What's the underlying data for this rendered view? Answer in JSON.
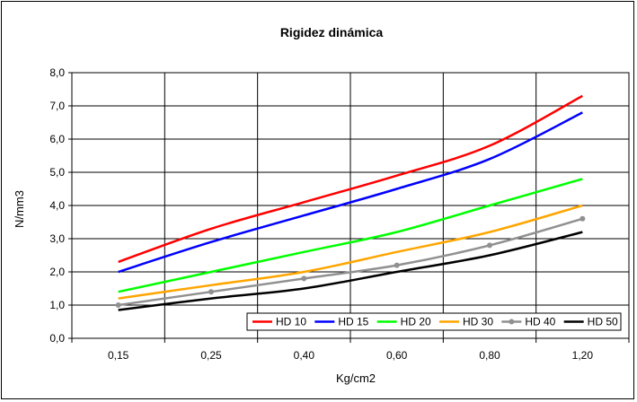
{
  "chart_data": {
    "type": "line",
    "title": "Rigidez dinámica",
    "xlabel": "Kg/cm2",
    "ylabel": "N/mm3",
    "categories": [
      "0,15",
      "0,25",
      "0,40",
      "0,60",
      "0,80",
      "1,20"
    ],
    "ylim": [
      0,
      8
    ],
    "yticks": [
      "0,0",
      "1,0",
      "2,0",
      "3,0",
      "4,0",
      "5,0",
      "6,0",
      "7,0",
      "8,0"
    ],
    "grid": true,
    "legend_position": "bottom-right",
    "series": [
      {
        "name": "HD 10",
        "color": "#ff0000",
        "marker": false,
        "values": [
          2.3,
          3.3,
          4.1,
          4.9,
          5.8,
          7.3
        ]
      },
      {
        "name": "HD 15",
        "color": "#0000ff",
        "marker": false,
        "values": [
          2.0,
          2.9,
          3.7,
          4.5,
          5.4,
          6.8
        ]
      },
      {
        "name": "HD 20",
        "color": "#00ff00",
        "marker": false,
        "values": [
          1.4,
          2.0,
          2.6,
          3.2,
          4.0,
          4.8
        ]
      },
      {
        "name": "HD 30",
        "color": "#ffa500",
        "marker": false,
        "values": [
          1.2,
          1.6,
          2.0,
          2.6,
          3.2,
          4.0
        ]
      },
      {
        "name": "HD 40",
        "color": "#909090",
        "marker": true,
        "values": [
          1.0,
          1.4,
          1.8,
          2.2,
          2.8,
          3.6
        ]
      },
      {
        "name": "HD 50",
        "color": "#000000",
        "marker": false,
        "values": [
          0.85,
          1.2,
          1.5,
          2.0,
          2.5,
          3.2
        ]
      }
    ]
  }
}
